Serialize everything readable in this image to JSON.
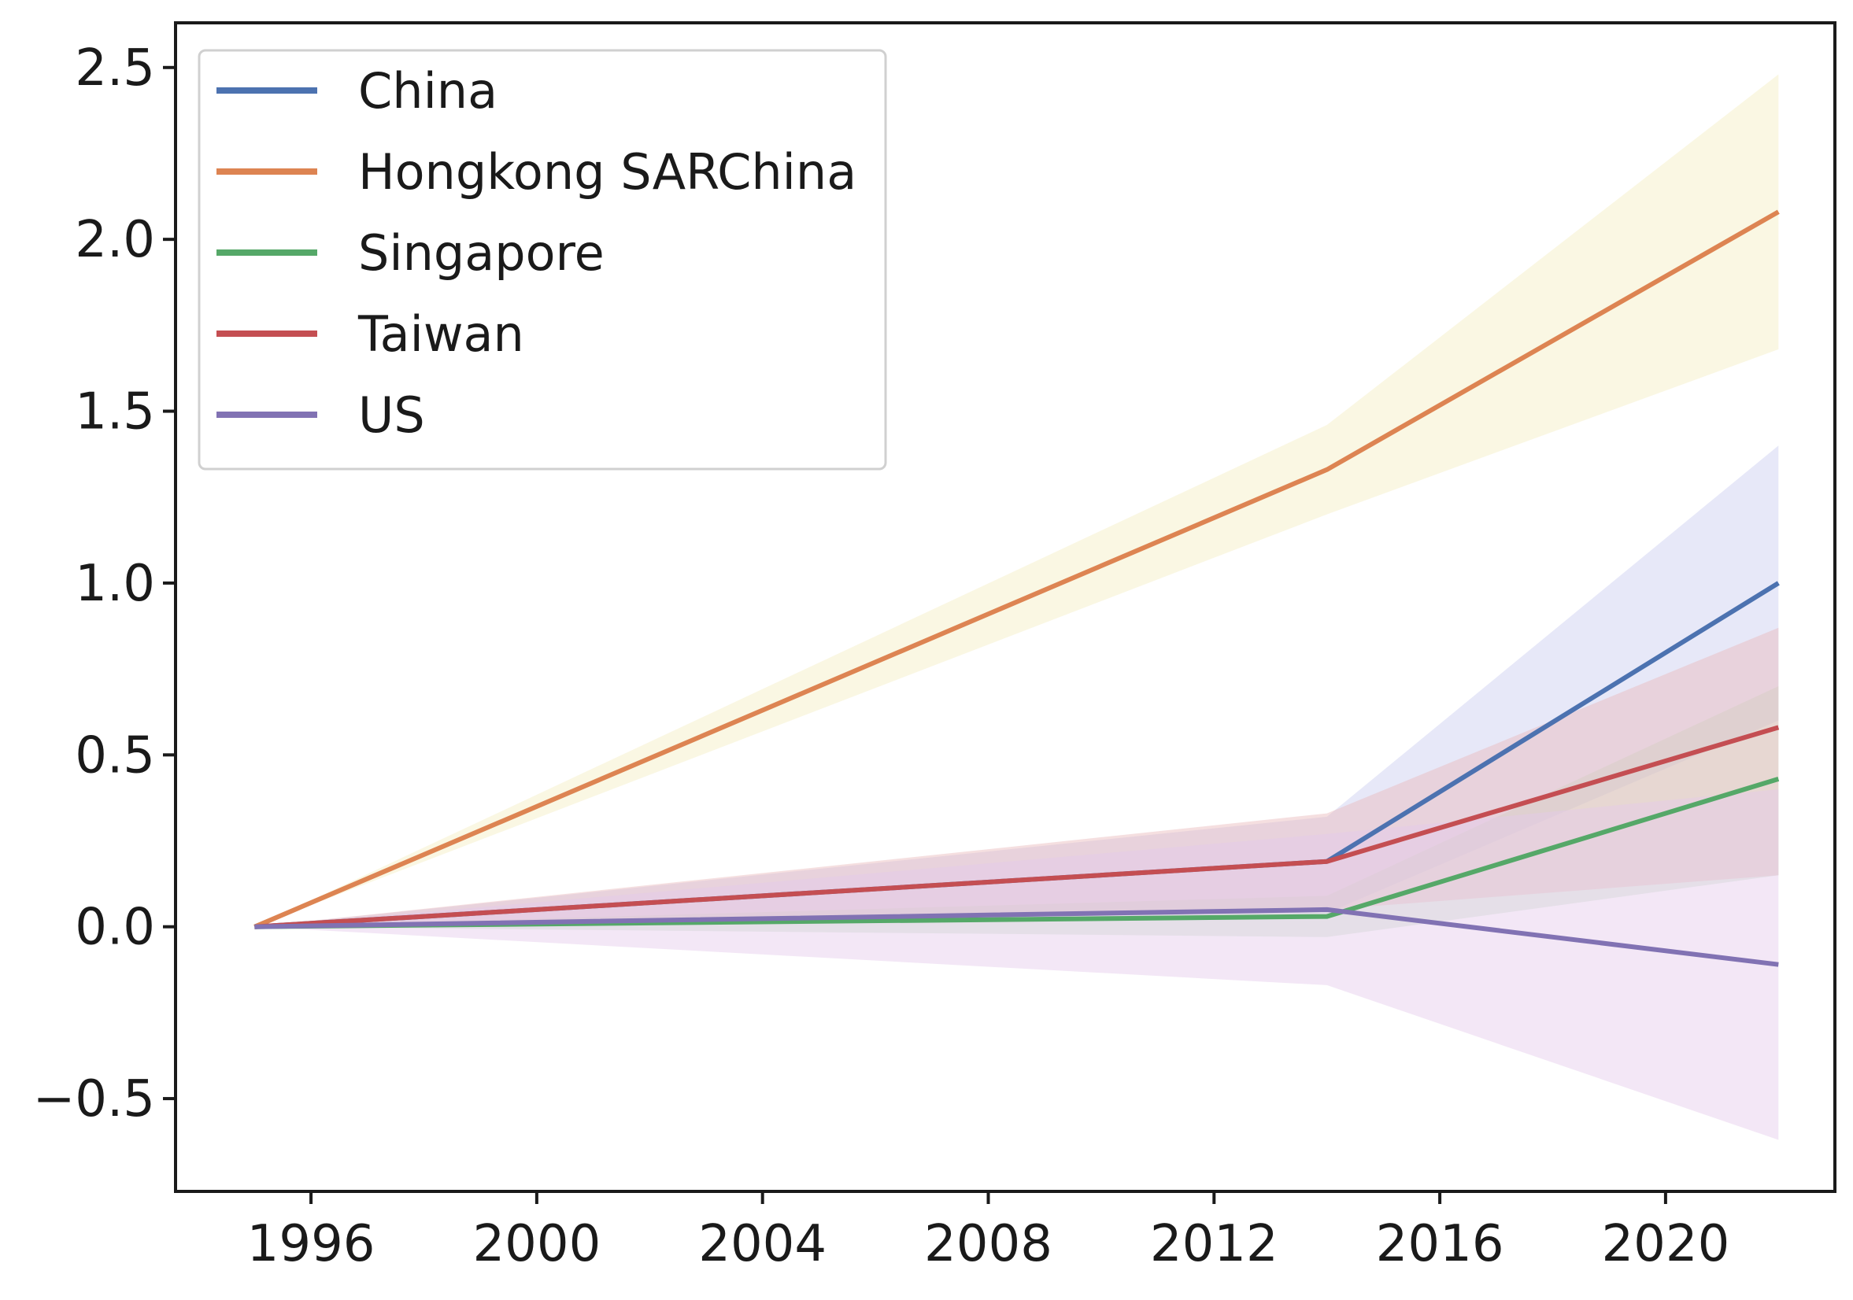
{
  "chart_data": {
    "type": "line",
    "title": "",
    "xlabel": "",
    "ylabel": "",
    "xlim": [
      1993.6,
      2023.0
    ],
    "ylim": [
      -0.77,
      2.63
    ],
    "x_ticks": [
      1996,
      2000,
      2004,
      2008,
      2012,
      2016,
      2020
    ],
    "x_tick_labels": [
      "1996",
      "2000",
      "2004",
      "2008",
      "2012",
      "2016",
      "2020"
    ],
    "y_ticks": [
      -0.5,
      0.0,
      0.5,
      1.0,
      1.5,
      2.0,
      2.5
    ],
    "y_tick_labels": [
      "−0.5",
      "0.0",
      "0.5",
      "1.0",
      "1.5",
      "2.0",
      "2.5"
    ],
    "grid": false,
    "legend_position": "top-left",
    "x": [
      1995,
      2014,
      2022
    ],
    "series": [
      {
        "name": "China",
        "color": "#4c72b0",
        "band_color": "#c9ccf0",
        "values": [
          0.0,
          0.19,
          1.0
        ],
        "lower": [
          0.0,
          0.04,
          0.6
        ],
        "upper": [
          0.0,
          0.32,
          1.4
        ]
      },
      {
        "name": "Hongkong SARChina",
        "color": "#dd8452",
        "band_color": "#f5eec0",
        "values": [
          0.0,
          1.33,
          2.08
        ],
        "lower": [
          0.0,
          1.2,
          1.68
        ],
        "upper": [
          0.0,
          1.46,
          2.48
        ]
      },
      {
        "name": "Singapore",
        "color": "#55a868",
        "band_color": "#c5dec8",
        "values": [
          0.0,
          0.03,
          0.43
        ],
        "lower": [
          0.0,
          -0.03,
          0.15
        ],
        "upper": [
          0.0,
          0.09,
          0.7
        ]
      },
      {
        "name": "Taiwan",
        "color": "#c44e52",
        "band_color": "#e8b8ba",
        "values": [
          0.0,
          0.19,
          0.58
        ],
        "lower": [
          0.0,
          0.05,
          0.15
        ],
        "upper": [
          0.0,
          0.33,
          0.87
        ]
      },
      {
        "name": "US",
        "color": "#8172b3",
        "band_color": "#e4c9ea",
        "values": [
          0.0,
          0.05,
          -0.11
        ],
        "lower": [
          0.0,
          -0.17,
          -0.62
        ],
        "upper": [
          0.0,
          0.27,
          0.4
        ]
      }
    ]
  }
}
